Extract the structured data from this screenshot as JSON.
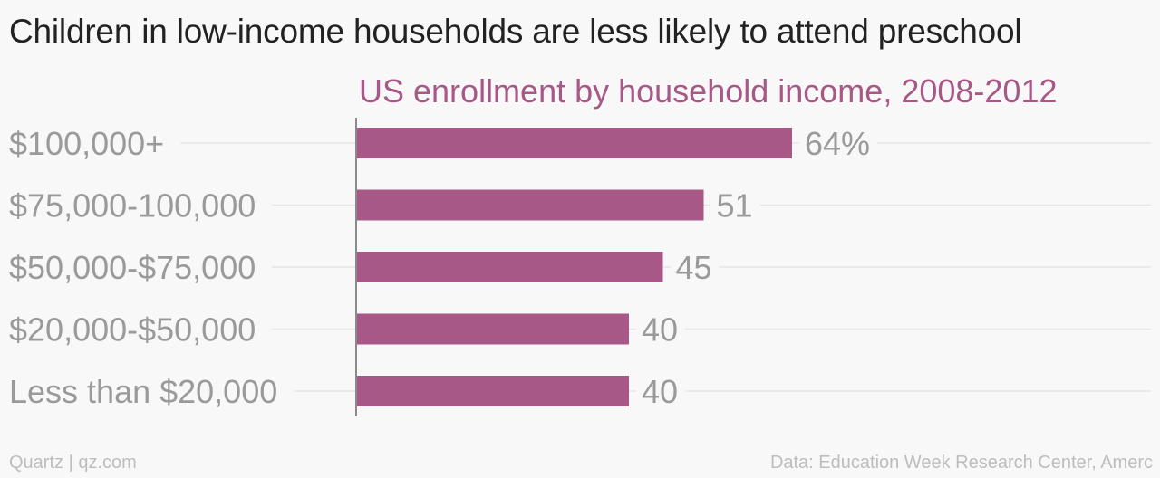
{
  "title": "Children in low-income households are less likely to attend preschool",
  "footer": {
    "credit": "Quartz | qz.com",
    "source": "Data: Education Week Research Center, Amerc"
  },
  "colors": {
    "bar": "#a85886",
    "subtitle": "#a85886",
    "category_label": "#9a9a9a",
    "value_label": "#9a9a9a",
    "grid": "#e6e6e6",
    "axis": "#666666",
    "background": "#f8f8f8"
  },
  "chart_data": {
    "type": "bar",
    "orientation": "horizontal",
    "subtitle": "US enrollment by household income, 2008-2012",
    "categories": [
      "$100,000+",
      "$75,000-100,000",
      "$50,000-$75,000",
      "$20,000-$50,000",
      "Less than $20,000"
    ],
    "values": [
      64,
      51,
      45,
      40,
      40
    ],
    "value_labels": [
      "64%",
      "51",
      "45",
      "40",
      "40"
    ],
    "xlim": [
      0,
      100
    ],
    "grid": true,
    "legend": "none"
  }
}
